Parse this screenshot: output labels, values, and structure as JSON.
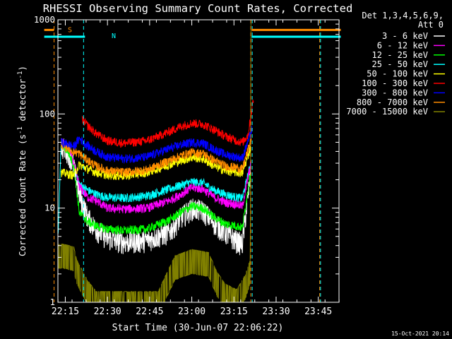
{
  "chart_data": {
    "type": "line",
    "title": "RHESSI Observing Summary Count Rates, Corrected",
    "xlabel": "Start Time (30-Jun-07 22:06:22)",
    "ylabel": "Corrected Count Rate (s⁻¹ detector⁻¹)",
    "ylabel_main": "Corrected Count Rate (s",
    "ylabel_sup1": "-1",
    "ylabel_mid": " detector",
    "ylabel_sup2": "-1",
    "ylabel_end": ")",
    "yscale": "log",
    "ylim": [
      1,
      1000
    ],
    "xlim_min": [
      6.37,
      106.37
    ],
    "x_ticks": [
      {
        "min": 9,
        "label": "22:15"
      },
      {
        "min": 24,
        "label": "22:30"
      },
      {
        "min": 39,
        "label": "22:45"
      },
      {
        "min": 54,
        "label": "23:00"
      },
      {
        "min": 69,
        "label": "23:15"
      },
      {
        "min": 84,
        "label": "23:30"
      },
      {
        "min": 99,
        "label": "23:45"
      }
    ],
    "y_ticks": [
      {
        "value": 1,
        "label": "1"
      },
      {
        "value": 10,
        "label": "10"
      },
      {
        "value": 100,
        "label": "100"
      },
      {
        "value": 1000,
        "label": "1000"
      }
    ],
    "legend_header": [
      "Det 1,3,4,5,6,9,",
      "Att 0"
    ],
    "legend_position": "right",
    "footer_date": "15-Oct-2021 20:14",
    "series": [
      {
        "name": "3 - 6 keV",
        "color": "#ffffff",
        "start": 7.5,
        "end": 75.0,
        "pts": [
          [
            7.5,
            46
          ],
          [
            10,
            40
          ],
          [
            12,
            28
          ],
          [
            14,
            14
          ],
          [
            17,
            8
          ],
          [
            20,
            6
          ],
          [
            24,
            4.8
          ],
          [
            30,
            4.4
          ],
          [
            38,
            4.6
          ],
          [
            46,
            5.6
          ],
          [
            50,
            8
          ],
          [
            54,
            10
          ],
          [
            58,
            9.5
          ],
          [
            62,
            7
          ],
          [
            66,
            5.5
          ],
          [
            70,
            4.5
          ],
          [
            72,
            4.2
          ],
          [
            75,
            25
          ]
        ]
      },
      {
        "name": "6 - 12 keV",
        "color": "#ff00ff",
        "start": 7.5,
        "end": 75.0,
        "pts": [
          [
            7.5,
            50
          ],
          [
            10,
            45
          ],
          [
            12,
            30
          ],
          [
            14,
            17
          ],
          [
            17,
            13
          ],
          [
            20,
            12
          ],
          [
            24,
            10
          ],
          [
            30,
            9.8
          ],
          [
            38,
            10
          ],
          [
            46,
            12
          ],
          [
            50,
            14
          ],
          [
            54,
            16.5
          ],
          [
            58,
            16
          ],
          [
            62,
            13
          ],
          [
            66,
            11.5
          ],
          [
            70,
            11
          ],
          [
            72,
            10.5
          ],
          [
            75,
            30
          ]
        ]
      },
      {
        "name": "12 - 25 keV",
        "color": "#00ff00",
        "start": 7.5,
        "end": 75.0,
        "pts": [
          [
            7.5,
            48
          ],
          [
            10,
            40
          ],
          [
            12,
            28
          ],
          [
            14,
            9
          ],
          [
            17,
            7.2
          ],
          [
            20,
            6.5
          ],
          [
            24,
            6
          ],
          [
            30,
            5.8
          ],
          [
            38,
            6
          ],
          [
            46,
            7.5
          ],
          [
            50,
            9
          ],
          [
            54,
            10.5
          ],
          [
            58,
            10
          ],
          [
            62,
            8
          ],
          [
            66,
            6.8
          ],
          [
            70,
            6.5
          ],
          [
            72,
            6.2
          ],
          [
            75,
            25
          ]
        ]
      },
      {
        "name": "25 - 50 keV",
        "color": "#00ffff",
        "start": 1.5,
        "end": 75.0,
        "pts": [
          [
            1.5,
            6
          ],
          [
            6.5,
            6
          ],
          [
            7.5,
            50
          ],
          [
            10,
            40
          ],
          [
            12,
            28
          ],
          [
            14,
            18
          ],
          [
            17,
            15.5
          ],
          [
            20,
            14
          ],
          [
            24,
            13
          ],
          [
            30,
            12.8
          ],
          [
            38,
            13.5
          ],
          [
            46,
            16
          ],
          [
            50,
            17.5
          ],
          [
            54,
            19
          ],
          [
            58,
            18.5
          ],
          [
            62,
            15.5
          ],
          [
            66,
            14
          ],
          [
            70,
            13
          ],
          [
            72,
            12.8
          ],
          [
            75,
            30
          ]
        ]
      },
      {
        "name": "50 - 100 keV",
        "color": "#ffff00",
        "start": 7.5,
        "end": 75.0,
        "pts": [
          [
            7.5,
            24
          ],
          [
            10,
            23
          ],
          [
            12,
            22.5
          ],
          [
            14,
            29
          ],
          [
            17,
            26
          ],
          [
            20,
            24
          ],
          [
            24,
            22.5
          ],
          [
            30,
            22
          ],
          [
            38,
            24
          ],
          [
            46,
            29
          ],
          [
            50,
            32
          ],
          [
            54,
            34.5
          ],
          [
            58,
            33.5
          ],
          [
            62,
            28
          ],
          [
            66,
            25
          ],
          [
            70,
            24
          ],
          [
            72,
            23.5
          ],
          [
            75,
            45
          ]
        ]
      },
      {
        "name": "100 - 300 keV",
        "color": "#ff0000",
        "start": 15.0,
        "end": 76.0,
        "pts": [
          [
            15,
            88
          ],
          [
            17,
            75
          ],
          [
            20,
            62
          ],
          [
            24,
            52
          ],
          [
            30,
            49
          ],
          [
            38,
            52
          ],
          [
            46,
            65
          ],
          [
            50,
            74
          ],
          [
            54,
            80
          ],
          [
            58,
            78
          ],
          [
            62,
            68
          ],
          [
            66,
            58
          ],
          [
            70,
            52
          ],
          [
            72,
            50
          ],
          [
            74,
            60
          ],
          [
            76,
            150
          ]
        ]
      },
      {
        "name": "300 - 800 keV",
        "color": "#0000ff",
        "start": 7.5,
        "end": 75.5,
        "pts": [
          [
            7.5,
            50
          ],
          [
            10,
            48
          ],
          [
            12,
            45
          ],
          [
            14,
            55
          ],
          [
            17,
            46
          ],
          [
            20,
            40
          ],
          [
            24,
            35
          ],
          [
            30,
            33.5
          ],
          [
            38,
            35
          ],
          [
            46,
            43
          ],
          [
            50,
            47
          ],
          [
            54,
            50
          ],
          [
            58,
            49
          ],
          [
            62,
            42
          ],
          [
            66,
            37
          ],
          [
            70,
            35
          ],
          [
            72,
            34
          ],
          [
            75.5,
            70
          ]
        ]
      },
      {
        "name": "800 - 7000 keV",
        "color": "#ff8c00",
        "start": 7.5,
        "end": 75.2,
        "pts": [
          [
            7.5,
            47
          ],
          [
            10,
            44
          ],
          [
            12,
            40
          ],
          [
            14,
            38
          ],
          [
            17,
            32
          ],
          [
            20,
            28
          ],
          [
            24,
            25
          ],
          [
            30,
            24
          ],
          [
            38,
            25.5
          ],
          [
            46,
            32
          ],
          [
            50,
            36
          ],
          [
            54,
            39
          ],
          [
            58,
            38
          ],
          [
            62,
            32
          ],
          [
            66,
            28
          ],
          [
            70,
            27
          ],
          [
            72,
            26
          ],
          [
            75.2,
            55
          ]
        ]
      },
      {
        "name": "7000 - 15000 keV",
        "color": "#808000",
        "start": 1.5,
        "end": 107.0,
        "pts": [
          [
            1.5,
            3.2
          ],
          [
            8,
            3.2
          ],
          [
            12,
            3
          ],
          [
            13,
            2.2
          ],
          [
            17,
            1.3
          ],
          [
            20,
            1
          ],
          [
            30,
            1
          ],
          [
            42,
            1
          ],
          [
            46,
            1.8
          ],
          [
            48,
            2.4
          ],
          [
            54,
            2.8
          ],
          [
            60,
            2.6
          ],
          [
            63,
            1.6
          ],
          [
            66,
            1.2
          ],
          [
            70,
            1.05
          ],
          [
            73,
            1.5
          ],
          [
            74.8,
            2.2
          ],
          [
            75,
            1000
          ],
          [
            107,
            1000
          ]
        ]
      }
    ],
    "legend": [
      {
        "label": "3 - 6 keV",
        "color": "#ffffff"
      },
      {
        "label": "6 - 12 keV",
        "color": "#ff00ff"
      },
      {
        "label": "12 - 25 keV",
        "color": "#00ff00"
      },
      {
        "label": "25 - 50 keV",
        "color": "#00ffff"
      },
      {
        "label": "50 - 100 keV",
        "color": "#ffff00"
      },
      {
        "label": "100 - 300 keV",
        "color": "#ff0000"
      },
      {
        "label": "300 - 800 keV",
        "color": "#0000ff"
      },
      {
        "label": "800 - 7000 keV",
        "color": "#ff8c00"
      },
      {
        "label": "7000 - 15000 keV",
        "color": "#808000"
      }
    ],
    "flags": [
      {
        "label": "S",
        "color": "#ff8c00",
        "level": 780,
        "segments": [
          [
            1.5,
            5
          ],
          [
            75.3,
            107
          ]
        ]
      },
      {
        "label": "N",
        "color": "#00ffff",
        "level": 660,
        "segments": [
          [
            1.5,
            16
          ],
          [
            75.3,
            107
          ]
        ]
      }
    ],
    "markers": [
      {
        "name": "s-flag-boundary",
        "color": "#ff8c00",
        "x": [
          5.0,
          75.0,
          99.5
        ]
      },
      {
        "name": "n-flag-boundary",
        "color": "#00ffff",
        "x": [
          15.5,
          75.5,
          99.8
        ]
      }
    ]
  }
}
